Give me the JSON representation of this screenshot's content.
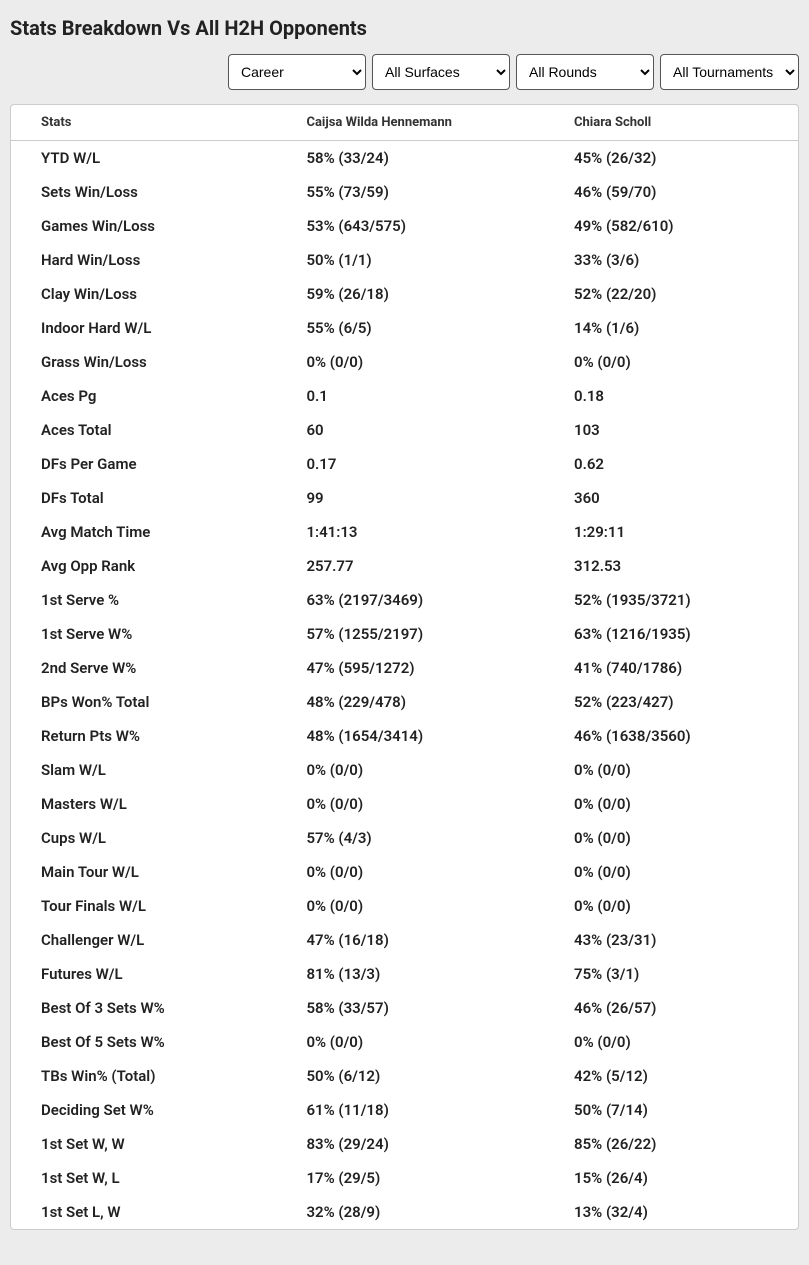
{
  "title": "Stats Breakdown Vs All H2H Opponents",
  "filters": {
    "period": {
      "selected": "Career",
      "options": [
        "Career"
      ]
    },
    "surface": {
      "selected": "All Surfaces",
      "options": [
        "All Surfaces"
      ]
    },
    "rounds": {
      "selected": "All Rounds",
      "options": [
        "All Rounds"
      ]
    },
    "tournaments": {
      "selected": "All Tournaments",
      "options": [
        "All Tournaments"
      ]
    }
  },
  "columns": {
    "stats": "Stats",
    "player1": "Caijsa Wilda Hennemann",
    "player2": "Chiara Scholl"
  },
  "rows": [
    {
      "stat": "YTD W/L",
      "p1": "58% (33/24)",
      "p2": "45% (26/32)"
    },
    {
      "stat": "Sets Win/Loss",
      "p1": "55% (73/59)",
      "p2": "46% (59/70)"
    },
    {
      "stat": "Games Win/Loss",
      "p1": "53% (643/575)",
      "p2": "49% (582/610)"
    },
    {
      "stat": "Hard Win/Loss",
      "p1": "50% (1/1)",
      "p2": "33% (3/6)"
    },
    {
      "stat": "Clay Win/Loss",
      "p1": "59% (26/18)",
      "p2": "52% (22/20)"
    },
    {
      "stat": "Indoor Hard W/L",
      "p1": "55% (6/5)",
      "p2": "14% (1/6)"
    },
    {
      "stat": "Grass Win/Loss",
      "p1": "0% (0/0)",
      "p2": "0% (0/0)"
    },
    {
      "stat": "Aces Pg",
      "p1": "0.1",
      "p2": "0.18"
    },
    {
      "stat": "Aces Total",
      "p1": "60",
      "p2": "103"
    },
    {
      "stat": "DFs Per Game",
      "p1": "0.17",
      "p2": "0.62"
    },
    {
      "stat": "DFs Total",
      "p1": "99",
      "p2": "360"
    },
    {
      "stat": "Avg Match Time",
      "p1": "1:41:13",
      "p2": "1:29:11"
    },
    {
      "stat": "Avg Opp Rank",
      "p1": "257.77",
      "p2": "312.53"
    },
    {
      "stat": "1st Serve %",
      "p1": "63% (2197/3469)",
      "p2": "52% (1935/3721)"
    },
    {
      "stat": "1st Serve W%",
      "p1": "57% (1255/2197)",
      "p2": "63% (1216/1935)"
    },
    {
      "stat": "2nd Serve W%",
      "p1": "47% (595/1272)",
      "p2": "41% (740/1786)"
    },
    {
      "stat": "BPs Won% Total",
      "p1": "48% (229/478)",
      "p2": "52% (223/427)"
    },
    {
      "stat": "Return Pts W%",
      "p1": "48% (1654/3414)",
      "p2": "46% (1638/3560)"
    },
    {
      "stat": "Slam W/L",
      "p1": "0% (0/0)",
      "p2": "0% (0/0)"
    },
    {
      "stat": "Masters W/L",
      "p1": "0% (0/0)",
      "p2": "0% (0/0)"
    },
    {
      "stat": "Cups W/L",
      "p1": "57% (4/3)",
      "p2": "0% (0/0)"
    },
    {
      "stat": "Main Tour W/L",
      "p1": "0% (0/0)",
      "p2": "0% (0/0)"
    },
    {
      "stat": "Tour Finals W/L",
      "p1": "0% (0/0)",
      "p2": "0% (0/0)"
    },
    {
      "stat": "Challenger W/L",
      "p1": "47% (16/18)",
      "p2": "43% (23/31)"
    },
    {
      "stat": "Futures W/L",
      "p1": "81% (13/3)",
      "p2": "75% (3/1)"
    },
    {
      "stat": "Best Of 3 Sets W%",
      "p1": "58% (33/57)",
      "p2": "46% (26/57)"
    },
    {
      "stat": "Best Of 5 Sets W%",
      "p1": "0% (0/0)",
      "p2": "0% (0/0)"
    },
    {
      "stat": "TBs Win% (Total)",
      "p1": "50% (6/12)",
      "p2": "42% (5/12)"
    },
    {
      "stat": "Deciding Set W%",
      "p1": "61% (11/18)",
      "p2": "50% (7/14)"
    },
    {
      "stat": "1st Set W, W",
      "p1": "83% (29/24)",
      "p2": "85% (26/22)"
    },
    {
      "stat": "1st Set W, L",
      "p1": "17% (29/5)",
      "p2": "15% (26/4)"
    },
    {
      "stat": "1st Set L, W",
      "p1": "32% (28/9)",
      "p2": "13% (32/4)"
    }
  ]
}
